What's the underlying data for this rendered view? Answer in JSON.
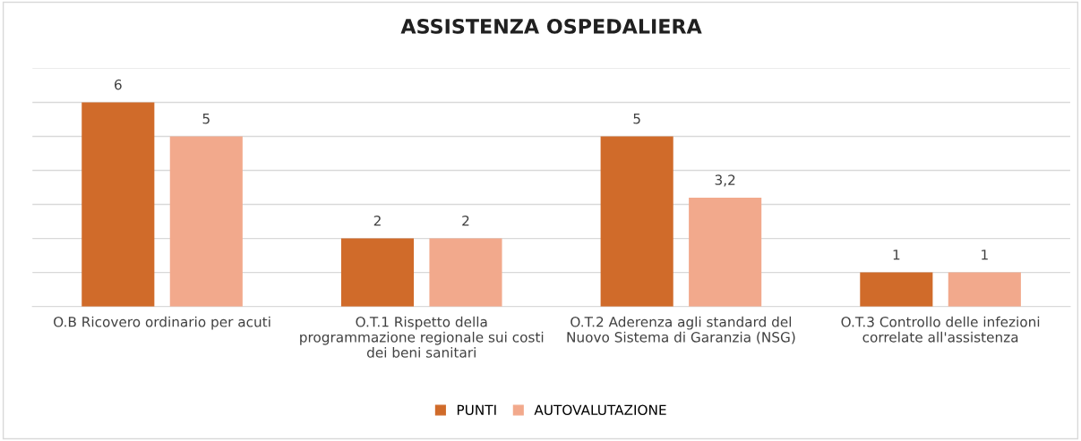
{
  "chart_data": {
    "type": "bar",
    "title": "ASSISTENZA OSPEDALIERA",
    "categories": [
      "O.B Ricovero ordinario per acuti",
      "O.T.1 Rispetto della\nprogrammazione regionale sui costi\ndei beni sanitari",
      "O.T.2 Aderenza agli standard del\nNuovo Sistema di Garanzia (NSG)",
      "O.T.3 Controllo delle infezioni\ncorrelate all'assistenza"
    ],
    "series": [
      {
        "name": "PUNTI",
        "color": "#d06b2a",
        "values": [
          6,
          2,
          5,
          1
        ],
        "value_labels": [
          "6",
          "2",
          "5",
          "1"
        ]
      },
      {
        "name": "AUTOVALUTAZIONE",
        "color": "#f2a98c",
        "values": [
          5,
          2,
          3.2,
          1
        ],
        "value_labels": [
          "5",
          "2",
          "3,2",
          "1"
        ]
      }
    ],
    "ylim": [
      0,
      7
    ],
    "yticks": [
      {
        "value": 0,
        "label": null
      },
      {
        "value": 1,
        "label": null
      },
      {
        "value": 2,
        "label": null
      },
      {
        "value": 3,
        "label": null
      },
      {
        "value": 4,
        "label": null
      },
      {
        "value": 5,
        "label": null
      },
      {
        "value": 6,
        "label": null
      },
      {
        "value": 7,
        "label": null
      }
    ],
    "tick_labels": "x",
    "grid": "y",
    "legend": "bottom"
  }
}
